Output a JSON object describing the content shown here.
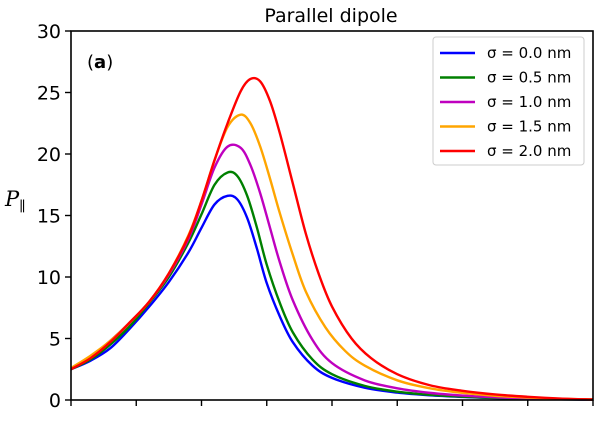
{
  "chart_data": {
    "type": "line",
    "title": "Parallel dipole",
    "panel_label_open": "(",
    "panel_label_bold": "a",
    "panel_label_close": ")",
    "ylabel": "P",
    "ylabel_subscript": "∥",
    "xlabel": "",
    "ylim": [
      0,
      30
    ],
    "yticks": [
      0,
      5,
      10,
      15,
      20,
      25,
      30
    ],
    "xlim": [
      0,
      8
    ],
    "xticks": [
      0,
      1,
      2,
      3,
      4,
      5,
      6,
      7,
      8
    ],
    "x_tick_labels_shown": false,
    "grid": false,
    "legend_position": "top-right",
    "series": [
      {
        "name": "σ = 0.0 nm",
        "color": "#0000ff",
        "x": [
          0,
          0.3,
          0.6,
          0.9,
          1.2,
          1.5,
          1.8,
          2.0,
          2.2,
          2.4,
          2.55,
          2.7,
          2.85,
          3.0,
          3.2,
          3.4,
          3.7,
          4.0,
          4.5,
          5.0,
          5.5,
          6.0,
          6.5,
          7.0,
          7.5,
          8.0
        ],
        "y": [
          2.5,
          3.2,
          4.2,
          5.8,
          7.6,
          9.6,
          12.0,
          14.0,
          15.9,
          16.6,
          16.3,
          14.8,
          12.3,
          9.5,
          6.8,
          4.7,
          2.8,
          1.8,
          1.0,
          0.6,
          0.38,
          0.25,
          0.16,
          0.1,
          0.06,
          0.03
        ]
      },
      {
        "name": "σ = 0.5 nm",
        "color": "#008000",
        "x": [
          0,
          0.3,
          0.6,
          0.9,
          1.2,
          1.5,
          1.8,
          2.0,
          2.2,
          2.4,
          2.55,
          2.7,
          2.85,
          3.0,
          3.2,
          3.4,
          3.7,
          4.0,
          4.5,
          5.0,
          5.5,
          6.0,
          6.5,
          7.0,
          7.5,
          8.0
        ],
        "y": [
          2.5,
          3.3,
          4.5,
          6.0,
          7.9,
          10.0,
          12.8,
          15.1,
          17.5,
          18.5,
          18.2,
          16.6,
          14.0,
          11.0,
          7.9,
          5.5,
          3.3,
          2.1,
          1.15,
          0.68,
          0.42,
          0.27,
          0.17,
          0.11,
          0.06,
          0.03
        ]
      },
      {
        "name": "σ = 1.0 nm",
        "color": "#bf00bf",
        "x": [
          0,
          0.3,
          0.6,
          0.9,
          1.2,
          1.5,
          1.8,
          2.0,
          2.2,
          2.4,
          2.6,
          2.75,
          2.9,
          3.05,
          3.2,
          3.4,
          3.7,
          4.0,
          4.5,
          5.0,
          5.5,
          6.0,
          6.5,
          7.0,
          7.5,
          8.0
        ],
        "y": [
          2.5,
          3.5,
          4.8,
          6.3,
          8.0,
          10.2,
          13.1,
          15.9,
          18.9,
          20.6,
          20.5,
          19.1,
          16.8,
          14.0,
          11.2,
          8.1,
          4.9,
          3.0,
          1.6,
          0.95,
          0.58,
          0.36,
          0.22,
          0.13,
          0.07,
          0.03
        ]
      },
      {
        "name": "σ = 1.5 nm",
        "color": "#ffa500",
        "x": [
          0,
          0.3,
          0.6,
          0.9,
          1.2,
          1.5,
          1.8,
          2.0,
          2.2,
          2.4,
          2.6,
          2.75,
          2.9,
          3.05,
          3.2,
          3.4,
          3.6,
          3.9,
          4.2,
          4.5,
          5.0,
          5.5,
          6.0,
          6.5,
          7.0,
          7.5,
          8.0
        ],
        "y": [
          2.6,
          3.6,
          4.8,
          6.3,
          8.0,
          10.3,
          13.4,
          16.2,
          19.5,
          22.2,
          23.2,
          22.5,
          20.6,
          18.0,
          15.2,
          11.8,
          8.8,
          5.9,
          4.0,
          2.8,
          1.6,
          0.95,
          0.58,
          0.34,
          0.2,
          0.1,
          0.04
        ]
      },
      {
        "name": "σ = 2.0 nm",
        "color": "#ff0000",
        "x": [
          0,
          0.3,
          0.6,
          0.9,
          1.2,
          1.5,
          1.8,
          2.0,
          2.2,
          2.4,
          2.6,
          2.75,
          2.9,
          3.05,
          3.2,
          3.4,
          3.6,
          3.8,
          4.0,
          4.3,
          4.6,
          5.0,
          5.5,
          6.0,
          6.5,
          7.0,
          7.5,
          8.0
        ],
        "y": [
          2.5,
          3.4,
          4.7,
          6.3,
          8.0,
          10.3,
          13.3,
          16.2,
          19.5,
          22.5,
          25.1,
          26.1,
          25.9,
          24.3,
          21.7,
          17.6,
          13.5,
          10.2,
          7.6,
          5.0,
          3.4,
          2.1,
          1.2,
          0.75,
          0.45,
          0.26,
          0.12,
          0.04
        ]
      }
    ]
  }
}
